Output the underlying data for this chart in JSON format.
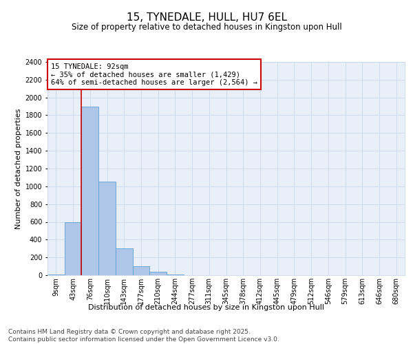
{
  "title": "15, TYNEDALE, HULL, HU7 6EL",
  "subtitle": "Size of property relative to detached houses in Kingston upon Hull",
  "xlabel": "Distribution of detached houses by size in Kingston upon Hull",
  "ylabel": "Number of detached properties",
  "categories": [
    "9sqm",
    "43sqm",
    "76sqm",
    "110sqm",
    "143sqm",
    "177sqm",
    "210sqm",
    "244sqm",
    "277sqm",
    "311sqm",
    "345sqm",
    "378sqm",
    "412sqm",
    "445sqm",
    "479sqm",
    "512sqm",
    "546sqm",
    "579sqm",
    "613sqm",
    "646sqm",
    "680sqm"
  ],
  "values": [
    5,
    600,
    1900,
    1050,
    300,
    100,
    40,
    5,
    2,
    1,
    0,
    0,
    0,
    0,
    0,
    0,
    0,
    0,
    0,
    0,
    0
  ],
  "bar_color": "#aec6e8",
  "bar_edge_color": "#5a9fd4",
  "vline_color": "#cc0000",
  "annotation_title": "15 TYNEDALE: 92sqm",
  "annotation_line1": "← 35% of detached houses are smaller (1,429)",
  "annotation_line2": "64% of semi-detached houses are larger (2,564) →",
  "annotation_box_color": "#cc0000",
  "ylim": [
    0,
    2400
  ],
  "yticks": [
    0,
    200,
    400,
    600,
    800,
    1000,
    1200,
    1400,
    1600,
    1800,
    2000,
    2200,
    2400
  ],
  "grid_color": "#c8d8ea",
  "bg_color": "#e8eff8",
  "footer": "Contains HM Land Registry data © Crown copyright and database right 2025.\nContains public sector information licensed under the Open Government Licence v3.0.",
  "title_fontsize": 11,
  "subtitle_fontsize": 8.5,
  "axis_label_fontsize": 8,
  "tick_fontsize": 7,
  "annotation_fontsize": 7.5,
  "footer_fontsize": 6.5
}
